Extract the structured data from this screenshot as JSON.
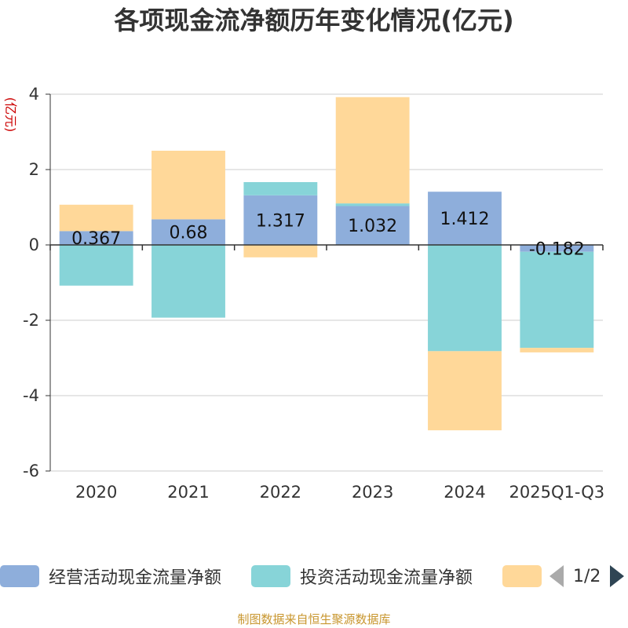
{
  "chart_data": {
    "type": "bar",
    "stacked": true,
    "title": "各项现金流净额历年变化情况(亿元)",
    "ylabel": "(亿元)",
    "xlabel": "",
    "categories": [
      "2020",
      "2021",
      "2022",
      "2023",
      "2024",
      "2025Q1-Q3"
    ],
    "ylim": [
      -6,
      4
    ],
    "yticks": [
      4,
      2,
      0,
      -2,
      -4,
      -6
    ],
    "series": [
      {
        "name": "经营活动现金流量净额",
        "color": "#8eaedb",
        "values": [
          0.367,
          0.68,
          1.317,
          1.032,
          1.412,
          -0.182
        ],
        "show_labels": true
      },
      {
        "name": "投资活动现金流量净额",
        "color": "#87d4d8",
        "values": [
          -1.08,
          -1.93,
          0.35,
          0.07,
          -2.82,
          -2.55
        ],
        "show_labels": false
      },
      {
        "name": "",
        "color": "#ffd899",
        "values": [
          0.7,
          1.82,
          -0.33,
          2.82,
          -2.1,
          -0.12
        ],
        "show_labels": false
      }
    ],
    "data_labels": [
      "0.367",
      "0.68",
      "1.317",
      "1.032",
      "1.412",
      "-0.182"
    ],
    "grid": true,
    "legend_position": "bottom"
  },
  "legend": {
    "items": [
      {
        "label": "经营活动现金流量净额",
        "color": "#8eaedb"
      },
      {
        "label": "投资活动现金流量净额",
        "color": "#87d4d8"
      },
      {
        "label": "",
        "color": "#ffd899"
      }
    ],
    "page_text": "1/2"
  },
  "source_note": "制图数据来自恒生聚源数据库"
}
